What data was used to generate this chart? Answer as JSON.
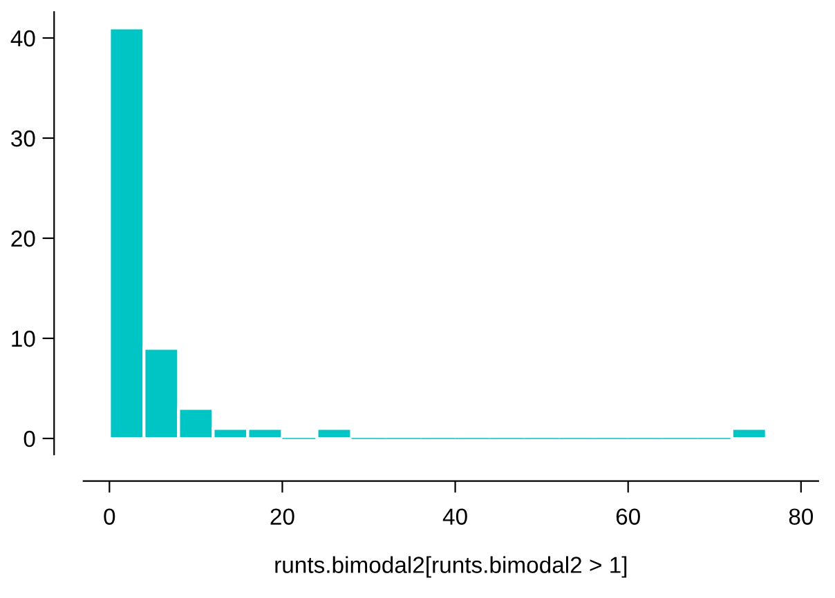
{
  "chart_data": {
    "type": "histogram",
    "xlabel": "runts.bimodal2[runts.bimodal2 > 1]",
    "bins": [
      0,
      4,
      8,
      12,
      16,
      20,
      24,
      28,
      32,
      36,
      40,
      44,
      48,
      52,
      56,
      60,
      64,
      68,
      72,
      76
    ],
    "values": [
      41,
      9,
      3,
      1,
      1,
      0,
      1,
      0,
      0,
      0,
      0,
      0,
      0,
      0,
      0,
      0,
      0,
      0,
      1
    ],
    "color": "#00c5c5",
    "xlim": [
      -3,
      82
    ],
    "ylim": [
      -1.6,
      42.6
    ],
    "xticks": [
      0,
      20,
      40,
      60,
      80
    ],
    "yticks": [
      0,
      10,
      20,
      30,
      40
    ],
    "grid": false
  }
}
